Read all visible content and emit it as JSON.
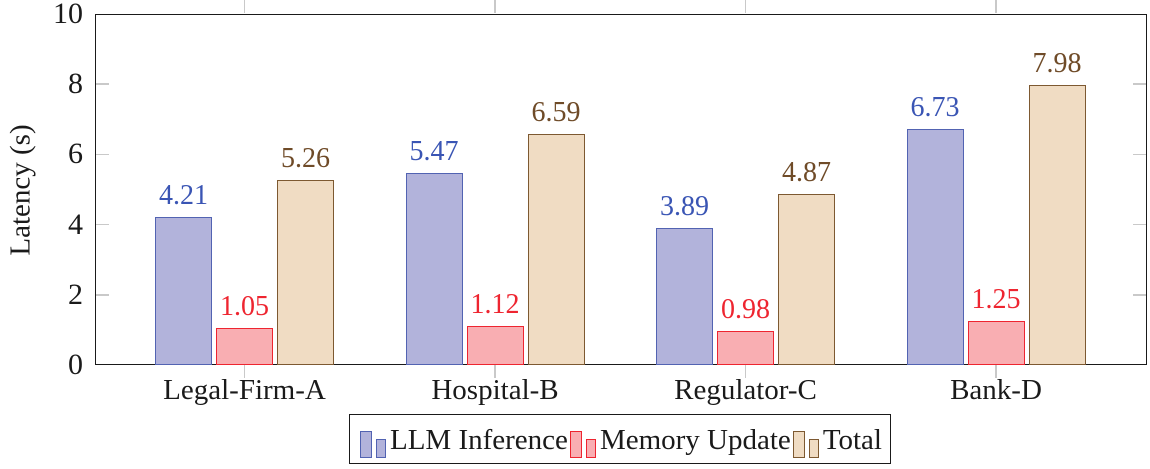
{
  "chart_data": {
    "type": "bar",
    "title": "",
    "xlabel": "",
    "ylabel": "Latency (s)",
    "ylim": [
      0,
      10
    ],
    "yticks": [
      0,
      2,
      4,
      6,
      8,
      10
    ],
    "grid": false,
    "legend_position": "bottom",
    "categories": [
      "Legal-Firm-A",
      "Hospital-B",
      "Regulator-C",
      "Bank-D"
    ],
    "series": [
      {
        "name": "LLM Inference",
        "values": [
          4.21,
          5.47,
          3.89,
          6.73
        ],
        "fill": "#b2b3db",
        "stroke": "#5263b2",
        "label_color": "#3a55b4"
      },
      {
        "name": "Memory Update",
        "values": [
          1.05,
          1.12,
          0.98,
          1.25
        ],
        "fill": "#f9aeb2",
        "stroke": "#ee2530",
        "label_color": "#ee2530"
      },
      {
        "name": "Total",
        "values": [
          5.26,
          6.59,
          4.87,
          7.98
        ],
        "fill": "#f0dcc3",
        "stroke": "#7d5931",
        "label_color": "#6f4b28"
      }
    ]
  },
  "colors": {
    "axis": "#1a1a1a",
    "tick": "#c9c9c9",
    "background": "#ffffff",
    "text": "#1a1a1a"
  }
}
